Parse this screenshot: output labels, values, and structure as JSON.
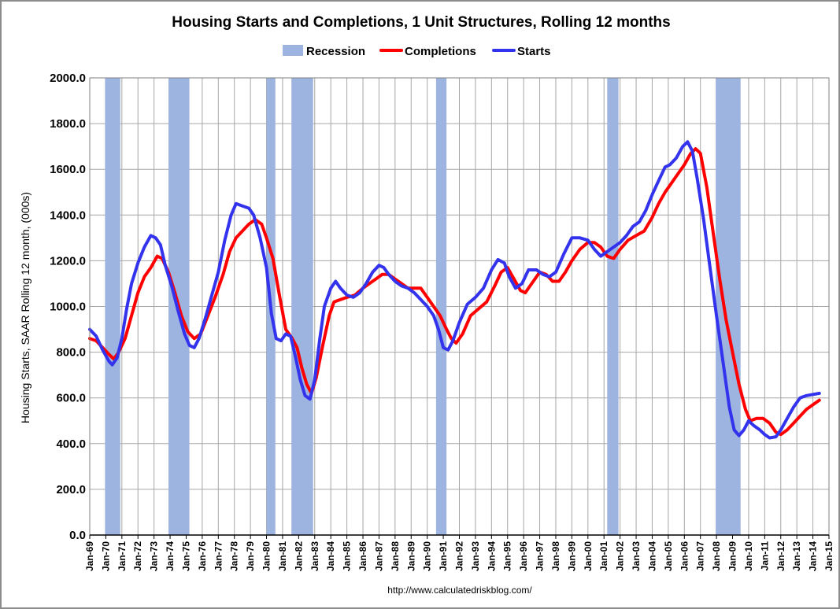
{
  "chart_data": {
    "type": "line",
    "title": "Housing Starts and Completions, 1 Unit Structures, Rolling 12 months",
    "ylabel": "Housing Starts, SAAR Rolling 12 month, (000s)",
    "xlabel": "",
    "source": "http://www.calculatedriskblog.com/",
    "ylim": [
      0,
      2000
    ],
    "xlim": [
      1969.0,
      2015.0
    ],
    "yticks": [
      "0.0",
      "200.0",
      "400.0",
      "600.0",
      "800.0",
      "1000.0",
      "1200.0",
      "1400.0",
      "1600.0",
      "1800.0",
      "2000.0"
    ],
    "xticks": [
      "Jan-69",
      "Jan-70",
      "Jan-71",
      "Jan-72",
      "Jan-73",
      "Jan-74",
      "Jan-75",
      "Jan-76",
      "Jan-77",
      "Jan-78",
      "Jan-79",
      "Jan-80",
      "Jan-81",
      "Jan-82",
      "Jan-83",
      "Jan-84",
      "Jan-85",
      "Jan-86",
      "Jan-87",
      "Jan-88",
      "Jan-89",
      "Jan-90",
      "Jan-91",
      "Jan-92",
      "Jan-93",
      "Jan-94",
      "Jan-95",
      "Jan-96",
      "Jan-97",
      "Jan-98",
      "Jan-99",
      "Jan-00",
      "Jan-01",
      "Jan-02",
      "Jan-03",
      "Jan-04",
      "Jan-05",
      "Jan-06",
      "Jan-07",
      "Jan-08",
      "Jan-09",
      "Jan-10",
      "Jan-11",
      "Jan-12",
      "Jan-13",
      "Jan-14",
      "Jan-15"
    ],
    "legend": [
      {
        "name": "Recession",
        "kind": "bar",
        "color": "#9db3e0"
      },
      {
        "name": "Completions",
        "kind": "line",
        "color": "#ff0000"
      },
      {
        "name": "Starts",
        "kind": "line",
        "color": "#3333ee"
      }
    ],
    "recessions": [
      {
        "start": 1969.95,
        "end": 1970.9
      },
      {
        "start": 1973.9,
        "end": 1975.2
      },
      {
        "start": 1980.0,
        "end": 1980.55
      },
      {
        "start": 1981.55,
        "end": 1982.9
      },
      {
        "start": 1990.55,
        "end": 1991.2
      },
      {
        "start": 2001.2,
        "end": 2001.9
      },
      {
        "start": 2007.95,
        "end": 2009.5
      }
    ],
    "series": [
      {
        "name": "Starts",
        "color": "#3333ee",
        "points": [
          [
            1969.0,
            900
          ],
          [
            1969.4,
            870
          ],
          [
            1969.8,
            810
          ],
          [
            1970.2,
            760
          ],
          [
            1970.4,
            745
          ],
          [
            1970.7,
            775
          ],
          [
            1971.0,
            860
          ],
          [
            1971.3,
            990
          ],
          [
            1971.6,
            1100
          ],
          [
            1972.0,
            1190
          ],
          [
            1972.4,
            1260
          ],
          [
            1972.8,
            1310
          ],
          [
            1973.1,
            1300
          ],
          [
            1973.4,
            1270
          ],
          [
            1973.7,
            1180
          ],
          [
            1974.1,
            1090
          ],
          [
            1974.5,
            980
          ],
          [
            1974.9,
            880
          ],
          [
            1975.2,
            830
          ],
          [
            1975.5,
            820
          ],
          [
            1975.8,
            860
          ],
          [
            1976.2,
            950
          ],
          [
            1976.6,
            1050
          ],
          [
            1977.0,
            1150
          ],
          [
            1977.4,
            1290
          ],
          [
            1977.8,
            1400
          ],
          [
            1978.1,
            1450
          ],
          [
            1978.5,
            1440
          ],
          [
            1978.9,
            1430
          ],
          [
            1979.2,
            1400
          ],
          [
            1979.6,
            1300
          ],
          [
            1980.0,
            1170
          ],
          [
            1980.3,
            970
          ],
          [
            1980.6,
            860
          ],
          [
            1980.9,
            850
          ],
          [
            1981.2,
            880
          ],
          [
            1981.5,
            870
          ],
          [
            1981.8,
            780
          ],
          [
            1982.1,
            680
          ],
          [
            1982.4,
            610
          ],
          [
            1982.7,
            595
          ],
          [
            1983.0,
            680
          ],
          [
            1983.3,
            850
          ],
          [
            1983.6,
            1000
          ],
          [
            1984.0,
            1080
          ],
          [
            1984.3,
            1110
          ],
          [
            1984.6,
            1080
          ],
          [
            1985.0,
            1050
          ],
          [
            1985.4,
            1040
          ],
          [
            1985.8,
            1060
          ],
          [
            1986.2,
            1100
          ],
          [
            1986.6,
            1150
          ],
          [
            1987.0,
            1180
          ],
          [
            1987.3,
            1170
          ],
          [
            1987.6,
            1140
          ],
          [
            1988.0,
            1110
          ],
          [
            1988.4,
            1090
          ],
          [
            1988.8,
            1080
          ],
          [
            1989.2,
            1060
          ],
          [
            1989.6,
            1030
          ],
          [
            1990.0,
            1000
          ],
          [
            1990.4,
            960
          ],
          [
            1990.7,
            900
          ],
          [
            1991.0,
            820
          ],
          [
            1991.3,
            810
          ],
          [
            1991.6,
            850
          ],
          [
            1992.0,
            930
          ],
          [
            1992.5,
            1010
          ],
          [
            1993.0,
            1040
          ],
          [
            1993.5,
            1080
          ],
          [
            1994.0,
            1160
          ],
          [
            1994.4,
            1205
          ],
          [
            1994.8,
            1190
          ],
          [
            1995.1,
            1130
          ],
          [
            1995.5,
            1080
          ],
          [
            1995.9,
            1100
          ],
          [
            1996.3,
            1160
          ],
          [
            1996.8,
            1160
          ],
          [
            1997.2,
            1140
          ],
          [
            1997.6,
            1130
          ],
          [
            1998.0,
            1150
          ],
          [
            1998.5,
            1230
          ],
          [
            1999.0,
            1300
          ],
          [
            1999.5,
            1300
          ],
          [
            2000.0,
            1290
          ],
          [
            2000.4,
            1250
          ],
          [
            2000.8,
            1220
          ],
          [
            2001.2,
            1240
          ],
          [
            2001.6,
            1260
          ],
          [
            2002.0,
            1280
          ],
          [
            2002.4,
            1310
          ],
          [
            2002.8,
            1350
          ],
          [
            2003.2,
            1370
          ],
          [
            2003.6,
            1420
          ],
          [
            2004.0,
            1490
          ],
          [
            2004.4,
            1550
          ],
          [
            2004.8,
            1610
          ],
          [
            2005.1,
            1620
          ],
          [
            2005.5,
            1650
          ],
          [
            2005.9,
            1700
          ],
          [
            2006.2,
            1720
          ],
          [
            2006.5,
            1680
          ],
          [
            2006.8,
            1560
          ],
          [
            2007.2,
            1380
          ],
          [
            2007.6,
            1170
          ],
          [
            2008.0,
            960
          ],
          [
            2008.4,
            760
          ],
          [
            2008.8,
            560
          ],
          [
            2009.1,
            460
          ],
          [
            2009.4,
            435
          ],
          [
            2009.7,
            460
          ],
          [
            2010.0,
            500
          ],
          [
            2010.3,
            480
          ],
          [
            2010.7,
            460
          ],
          [
            2011.0,
            440
          ],
          [
            2011.3,
            425
          ],
          [
            2011.7,
            430
          ],
          [
            2012.0,
            460
          ],
          [
            2012.4,
            510
          ],
          [
            2012.8,
            560
          ],
          [
            2013.2,
            600
          ],
          [
            2013.6,
            610
          ],
          [
            2014.0,
            615
          ],
          [
            2014.4,
            620
          ]
        ]
      },
      {
        "name": "Completions",
        "color": "#ff0000",
        "points": [
          [
            1969.0,
            860
          ],
          [
            1969.4,
            850
          ],
          [
            1969.8,
            820
          ],
          [
            1970.2,
            790
          ],
          [
            1970.5,
            770
          ],
          [
            1970.8,
            800
          ],
          [
            1971.2,
            860
          ],
          [
            1971.6,
            960
          ],
          [
            1972.0,
            1060
          ],
          [
            1972.4,
            1130
          ],
          [
            1972.8,
            1170
          ],
          [
            1973.2,
            1220
          ],
          [
            1973.5,
            1210
          ],
          [
            1973.9,
            1150
          ],
          [
            1974.3,
            1060
          ],
          [
            1974.7,
            960
          ],
          [
            1975.1,
            890
          ],
          [
            1975.5,
            860
          ],
          [
            1975.9,
            880
          ],
          [
            1976.3,
            950
          ],
          [
            1976.8,
            1040
          ],
          [
            1977.3,
            1140
          ],
          [
            1977.7,
            1240
          ],
          [
            1978.1,
            1300
          ],
          [
            1978.5,
            1330
          ],
          [
            1978.9,
            1360
          ],
          [
            1979.3,
            1380
          ],
          [
            1979.7,
            1360
          ],
          [
            1980.0,
            1300
          ],
          [
            1980.4,
            1210
          ],
          [
            1980.8,
            1050
          ],
          [
            1981.2,
            900
          ],
          [
            1981.6,
            860
          ],
          [
            1981.9,
            820
          ],
          [
            1982.2,
            730
          ],
          [
            1982.5,
            660
          ],
          [
            1982.8,
            620
          ],
          [
            1983.1,
            690
          ],
          [
            1983.5,
            830
          ],
          [
            1983.9,
            960
          ],
          [
            1984.2,
            1020
          ],
          [
            1984.6,
            1030
          ],
          [
            1985.0,
            1040
          ],
          [
            1985.5,
            1050
          ],
          [
            1986.0,
            1080
          ],
          [
            1986.4,
            1100
          ],
          [
            1986.8,
            1120
          ],
          [
            1987.2,
            1140
          ],
          [
            1987.6,
            1140
          ],
          [
            1988.0,
            1120
          ],
          [
            1988.4,
            1100
          ],
          [
            1988.8,
            1080
          ],
          [
            1989.2,
            1080
          ],
          [
            1989.6,
            1080
          ],
          [
            1990.0,
            1040
          ],
          [
            1990.4,
            1000
          ],
          [
            1990.8,
            960
          ],
          [
            1991.2,
            900
          ],
          [
            1991.5,
            860
          ],
          [
            1991.8,
            840
          ],
          [
            1992.2,
            880
          ],
          [
            1992.7,
            960
          ],
          [
            1993.2,
            990
          ],
          [
            1993.7,
            1020
          ],
          [
            1994.2,
            1090
          ],
          [
            1994.6,
            1150
          ],
          [
            1995.0,
            1170
          ],
          [
            1995.4,
            1120
          ],
          [
            1995.8,
            1070
          ],
          [
            1996.1,
            1060
          ],
          [
            1996.5,
            1100
          ],
          [
            1997.0,
            1150
          ],
          [
            1997.4,
            1140
          ],
          [
            1997.8,
            1110
          ],
          [
            1998.2,
            1110
          ],
          [
            1998.6,
            1150
          ],
          [
            1999.0,
            1200
          ],
          [
            1999.5,
            1250
          ],
          [
            2000.0,
            1280
          ],
          [
            2000.4,
            1280
          ],
          [
            2000.8,
            1260
          ],
          [
            2001.2,
            1220
          ],
          [
            2001.6,
            1210
          ],
          [
            2002.0,
            1250
          ],
          [
            2002.5,
            1290
          ],
          [
            2003.0,
            1310
          ],
          [
            2003.5,
            1330
          ],
          [
            2004.0,
            1390
          ],
          [
            2004.4,
            1450
          ],
          [
            2004.8,
            1500
          ],
          [
            2005.2,
            1540
          ],
          [
            2005.6,
            1580
          ],
          [
            2006.0,
            1620
          ],
          [
            2006.4,
            1670
          ],
          [
            2006.7,
            1690
          ],
          [
            2007.0,
            1670
          ],
          [
            2007.4,
            1520
          ],
          [
            2007.8,
            1320
          ],
          [
            2008.2,
            1120
          ],
          [
            2008.6,
            940
          ],
          [
            2009.0,
            800
          ],
          [
            2009.4,
            660
          ],
          [
            2009.8,
            550
          ],
          [
            2010.1,
            500
          ],
          [
            2010.5,
            510
          ],
          [
            2010.9,
            510
          ],
          [
            2011.3,
            490
          ],
          [
            2011.7,
            450
          ],
          [
            2012.0,
            440
          ],
          [
            2012.4,
            460
          ],
          [
            2012.8,
            490
          ],
          [
            2013.2,
            520
          ],
          [
            2013.6,
            550
          ],
          [
            2014.0,
            570
          ],
          [
            2014.4,
            590
          ]
        ]
      }
    ]
  }
}
